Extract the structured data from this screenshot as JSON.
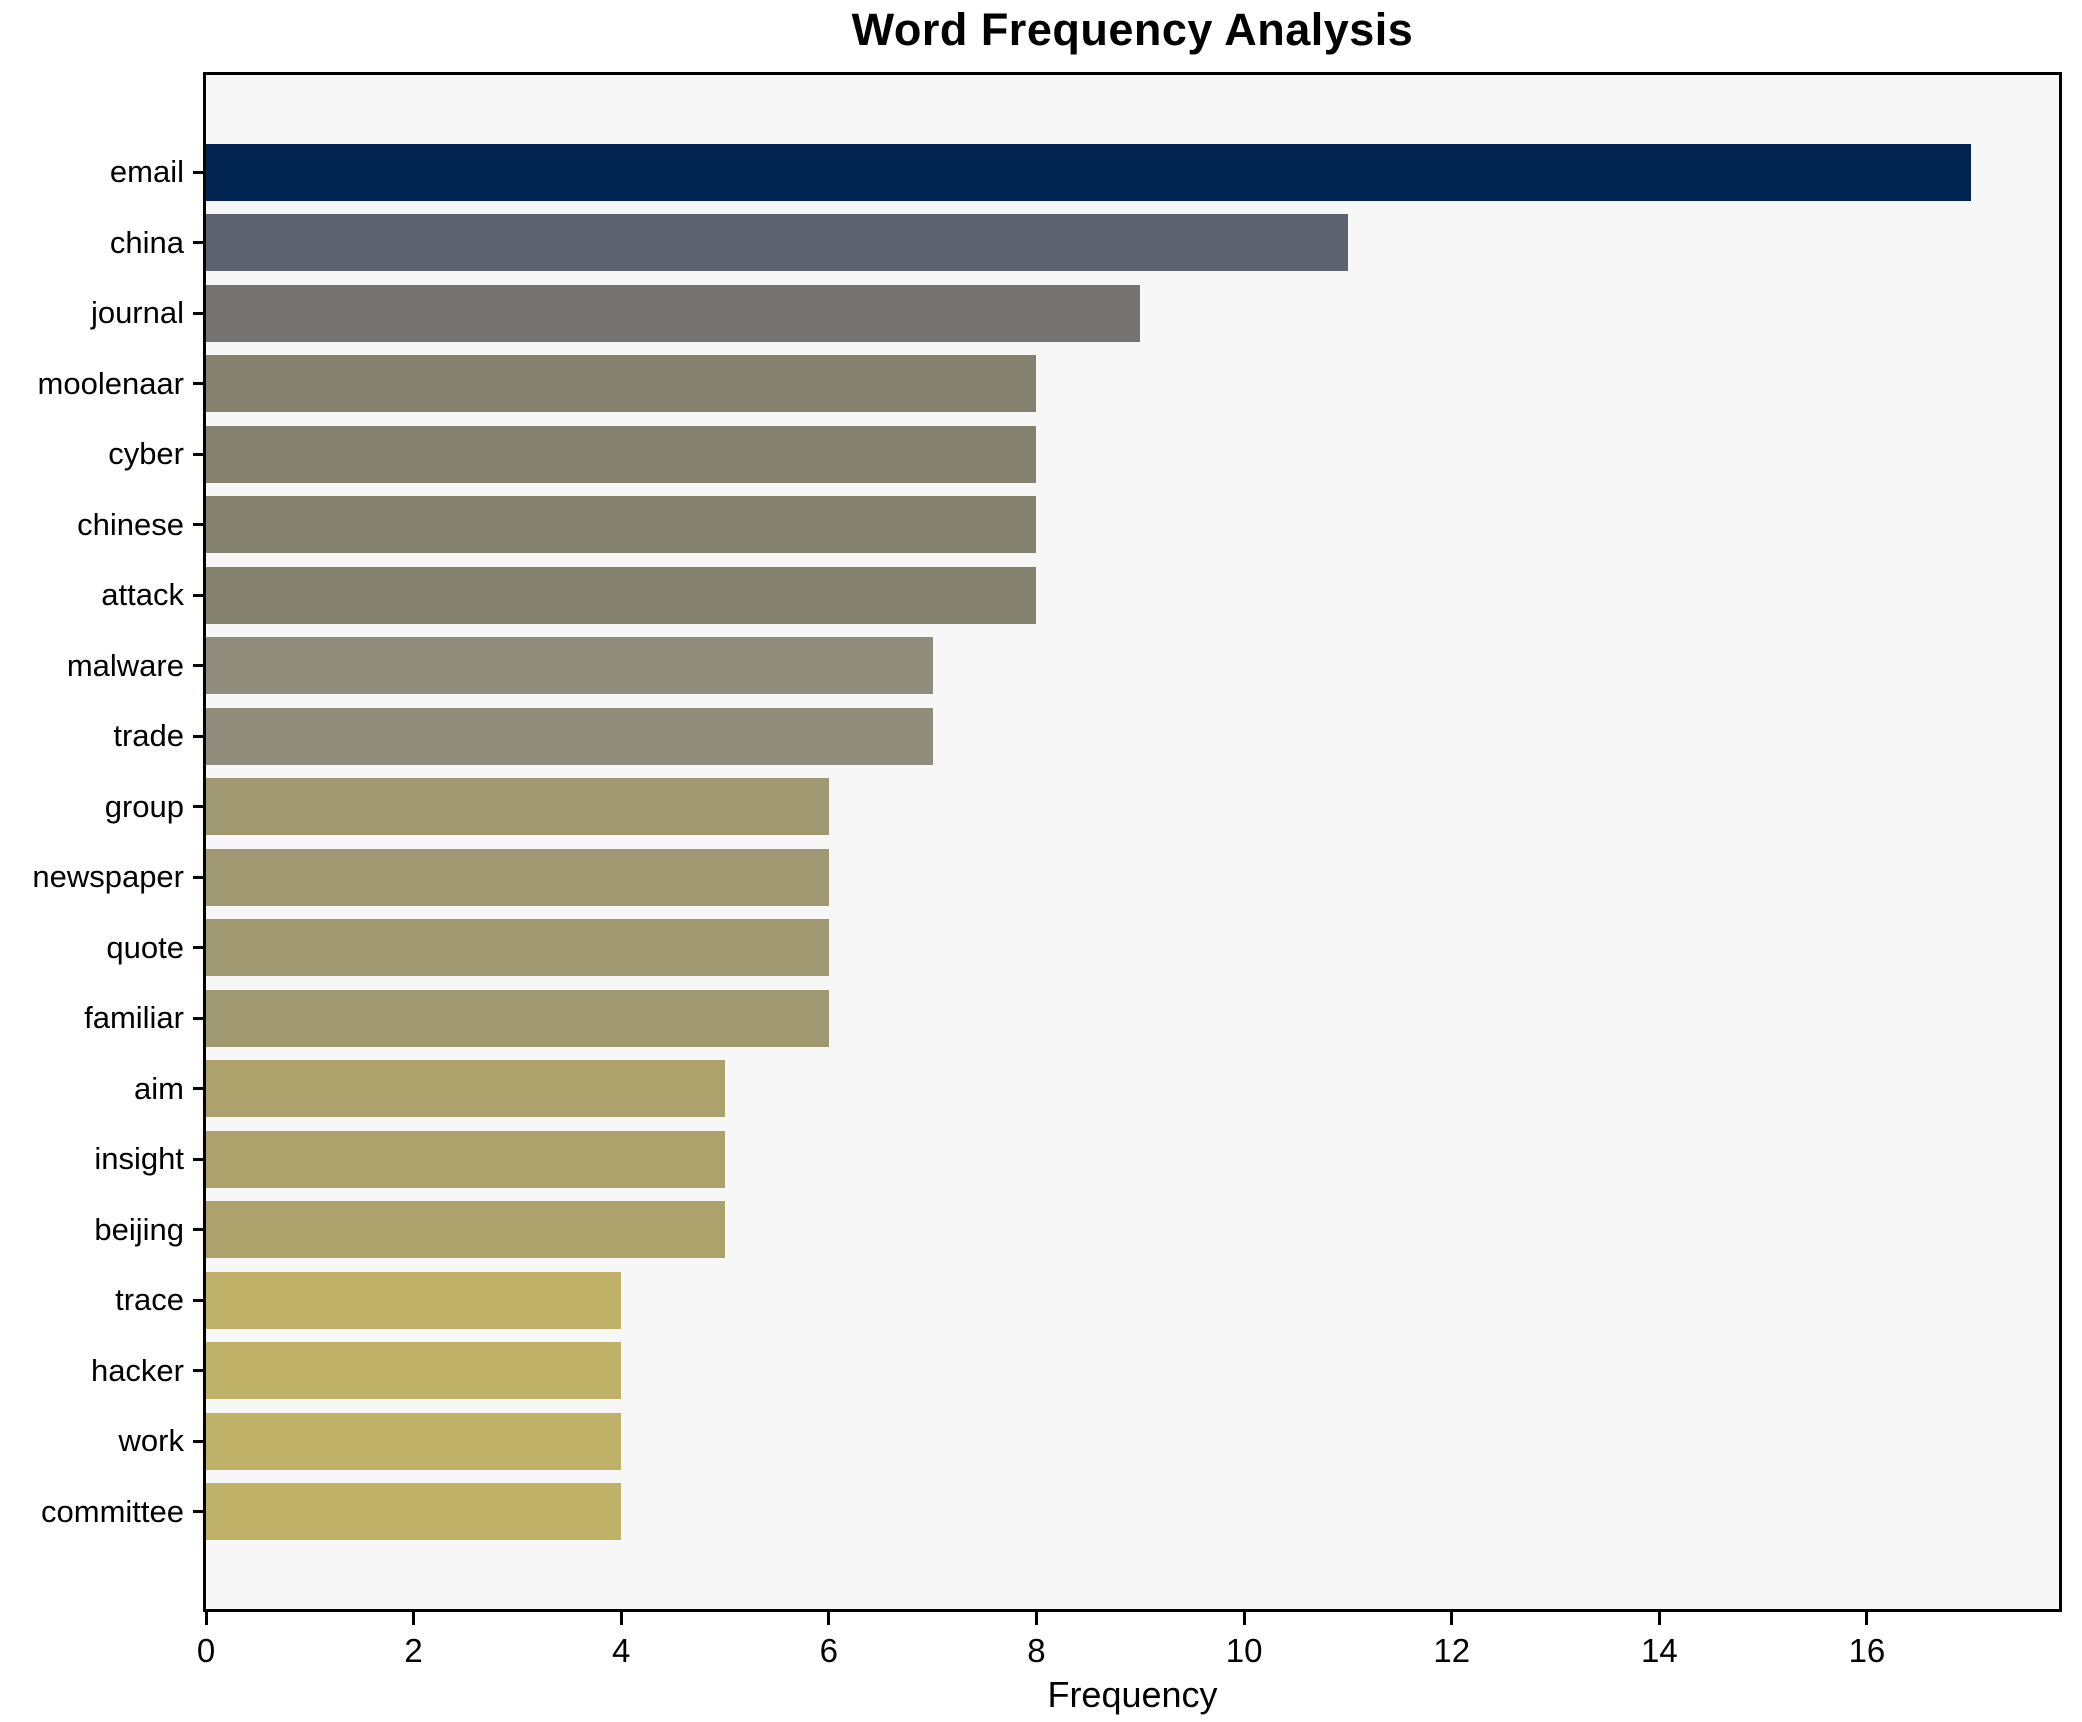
{
  "title": "Word Frequency Analysis",
  "xlabel": "Frequency",
  "chart_data": {
    "type": "bar",
    "orientation": "horizontal",
    "title": "Word Frequency Analysis",
    "xlabel": "Frequency",
    "ylabel": "",
    "categories": [
      "email",
      "china",
      "journal",
      "moolenaar",
      "cyber",
      "chinese",
      "attack",
      "malware",
      "trade",
      "group",
      "newspaper",
      "quote",
      "familiar",
      "aim",
      "insight",
      "beijing",
      "trace",
      "hacker",
      "work",
      "committee"
    ],
    "values": [
      17,
      11,
      9,
      8,
      8,
      8,
      8,
      7,
      7,
      6,
      6,
      6,
      6,
      5,
      5,
      5,
      4,
      4,
      4,
      4
    ],
    "xlim": [
      0,
      17.85
    ],
    "xticks": [
      0,
      2,
      4,
      6,
      8,
      10,
      12,
      14,
      16
    ],
    "grid": false,
    "legend": null,
    "bar_colors": [
      "#00234f",
      "#5c6270",
      "#747372",
      "#84816f",
      "#84816f",
      "#84816f",
      "#84816f",
      "#918d7c",
      "#918d7c",
      "#9f9870",
      "#9f9870",
      "#9f9870",
      "#9f9870",
      "#ada26b",
      "#ada26b",
      "#ada26b",
      "#c0b169",
      "#c0b169",
      "#c0b169",
      "#c0b169"
    ],
    "colors": {
      "plot_background": "#f7f7f8",
      "figure_background": "#ffffff",
      "spine": "#000000",
      "text": "#000000"
    }
  }
}
